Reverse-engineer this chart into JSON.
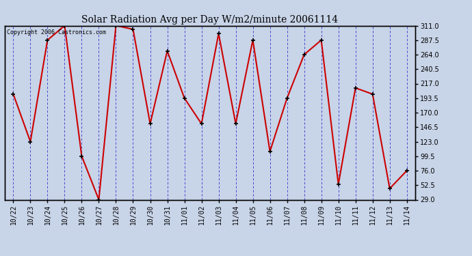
{
  "title": "Solar Radiation Avg per Day W/m2/minute 20061114",
  "copyright": "Copyright 2006 Castronics.com",
  "labels": [
    "10/22",
    "10/23",
    "10/24",
    "10/25",
    "10/26",
    "10/27",
    "10/28",
    "10/29",
    "10/30",
    "10/31",
    "11/01",
    "11/02",
    "11/03",
    "11/04",
    "11/05",
    "11/06",
    "11/07",
    "11/08",
    "11/09",
    "11/10",
    "11/11",
    "11/12",
    "11/13",
    "11/14"
  ],
  "values": [
    200,
    123,
    287.5,
    311,
    99.5,
    29,
    311,
    305,
    152,
    270,
    193.5,
    152,
    298,
    152,
    287.5,
    107,
    193.5,
    264,
    287.5,
    54,
    210,
    200,
    47,
    76
  ],
  "yticks": [
    29.0,
    52.5,
    76.0,
    99.5,
    123.0,
    146.5,
    170.0,
    193.5,
    217.0,
    240.5,
    264.0,
    287.5,
    311.0
  ],
  "ymin": 29.0,
  "ymax": 311.0,
  "line_color": "#cc0000",
  "marker_color": "#000000",
  "bg_color": "#c8d4e8",
  "plot_bg_color": "#c8d4e8",
  "grid_color": "#3333cc",
  "title_color": "#000000",
  "copyright_color": "#000000",
  "tick_label_color": "#000000",
  "border_color": "#000000",
  "figwidth": 6.9,
  "figheight": 3.75,
  "dpi": 100
}
